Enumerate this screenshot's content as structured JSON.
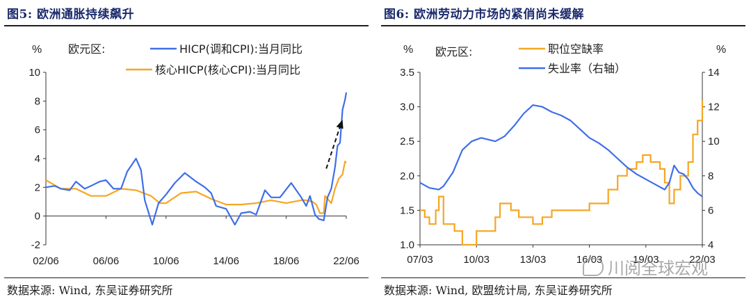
{
  "watermark": {
    "text": "川阅全球宏观",
    "icon": "wechat-bubble-icon"
  },
  "chart_data": [
    {
      "type": "line",
      "title": "图5: 欧洲通胀持续飙升",
      "source": "数据来源: Wind, 东吴证券研究所",
      "region_label": "欧元区:",
      "y_unit": "%",
      "ylim": [
        -2,
        10
      ],
      "y_ticks": [
        "-2",
        "0",
        "2",
        "4",
        "6",
        "8",
        "10"
      ],
      "x_ticks": [
        "02/06",
        "06/06",
        "10/06",
        "14/06",
        "18/06",
        "22/06"
      ],
      "xlim": [
        "2002-06",
        "2022-06"
      ],
      "legend_position": "top-right",
      "annotation": "dashed-arrow-up",
      "series": [
        {
          "name": "HICP(调和CPI):当月同比",
          "color": "#3f6ee8",
          "points": [
            [
              "2002-06",
              2.0
            ],
            [
              "2003-01",
              2.1
            ],
            [
              "2003-06",
              1.9
            ],
            [
              "2004-01",
              1.8
            ],
            [
              "2004-06",
              2.4
            ],
            [
              "2005-01",
              1.9
            ],
            [
              "2005-06",
              2.1
            ],
            [
              "2006-01",
              2.4
            ],
            [
              "2006-06",
              2.5
            ],
            [
              "2006-12",
              1.9
            ],
            [
              "2007-06",
              1.9
            ],
            [
              "2007-11",
              3.1
            ],
            [
              "2008-06",
              4.0
            ],
            [
              "2008-10",
              3.2
            ],
            [
              "2009-01",
              1.1
            ],
            [
              "2009-07",
              -0.6
            ],
            [
              "2009-12",
              0.9
            ],
            [
              "2010-06",
              1.5
            ],
            [
              "2011-01",
              2.3
            ],
            [
              "2011-09",
              3.0
            ],
            [
              "2012-06",
              2.4
            ],
            [
              "2013-01",
              2.0
            ],
            [
              "2013-06",
              1.6
            ],
            [
              "2013-10",
              0.7
            ],
            [
              "2014-06",
              0.5
            ],
            [
              "2015-01",
              -0.6
            ],
            [
              "2015-06",
              0.2
            ],
            [
              "2016-01",
              0.3
            ],
            [
              "2016-06",
              0.1
            ],
            [
              "2017-01",
              1.8
            ],
            [
              "2017-06",
              1.3
            ],
            [
              "2018-01",
              1.3
            ],
            [
              "2018-10",
              2.3
            ],
            [
              "2019-06",
              1.3
            ],
            [
              "2019-10",
              0.7
            ],
            [
              "2020-01",
              1.4
            ],
            [
              "2020-05",
              0.1
            ],
            [
              "2020-08",
              -0.2
            ],
            [
              "2020-12",
              -0.3
            ],
            [
              "2021-03",
              1.3
            ],
            [
              "2021-06",
              1.9
            ],
            [
              "2021-09",
              3.4
            ],
            [
              "2021-11",
              4.9
            ],
            [
              "2022-01",
              5.1
            ],
            [
              "2022-03",
              7.4
            ],
            [
              "2022-05",
              8.1
            ],
            [
              "2022-06",
              8.6
            ]
          ]
        },
        {
          "name": "核心HICP(核心CPI):当月同比",
          "color": "#f5a623",
          "points": [
            [
              "2002-06",
              2.5
            ],
            [
              "2003-06",
              1.9
            ],
            [
              "2004-06",
              1.9
            ],
            [
              "2005-06",
              1.4
            ],
            [
              "2006-06",
              1.4
            ],
            [
              "2007-06",
              1.9
            ],
            [
              "2008-06",
              1.8
            ],
            [
              "2009-06",
              1.4
            ],
            [
              "2010-01",
              0.9
            ],
            [
              "2010-06",
              0.9
            ],
            [
              "2011-06",
              1.6
            ],
            [
              "2012-06",
              1.7
            ],
            [
              "2013-06",
              1.2
            ],
            [
              "2014-06",
              0.8
            ],
            [
              "2015-06",
              0.8
            ],
            [
              "2016-06",
              0.9
            ],
            [
              "2017-06",
              1.1
            ],
            [
              "2018-06",
              0.9
            ],
            [
              "2019-06",
              1.1
            ],
            [
              "2019-10",
              1.1
            ],
            [
              "2020-03",
              1.0
            ],
            [
              "2020-06",
              0.8
            ],
            [
              "2020-09",
              0.2
            ],
            [
              "2020-12",
              0.2
            ],
            [
              "2021-01",
              1.4
            ],
            [
              "2021-06",
              0.9
            ],
            [
              "2021-09",
              1.9
            ],
            [
              "2021-12",
              2.6
            ],
            [
              "2022-03",
              2.9
            ],
            [
              "2022-05",
              3.8
            ],
            [
              "2022-06",
              3.7
            ]
          ]
        }
      ]
    },
    {
      "type": "line",
      "title": "图6: 欧洲劳动力市场的紧俏尚未缓解",
      "source": "数据来源: Wind, 欧盟统计局, 东吴证券研究所",
      "region_label": "欧元区:",
      "y_unit_left": "%",
      "y_unit_right": "%",
      "ylim_left": [
        1.0,
        3.5
      ],
      "ylim_right": [
        4,
        14
      ],
      "y_ticks_left": [
        "1.0",
        "1.5",
        "2.0",
        "2.5",
        "3.0",
        "3.5"
      ],
      "y_ticks_right": [
        "4",
        "6",
        "8",
        "10",
        "12",
        "14"
      ],
      "x_ticks": [
        "07/03",
        "10/03",
        "13/03",
        "16/03",
        "19/03",
        "22/03"
      ],
      "xlim": [
        "2007-03",
        "2022-03"
      ],
      "legend_position": "top",
      "series": [
        {
          "name": "职位空缺率",
          "axis": "left",
          "color": "#f5a623",
          "points": [
            [
              "2007-03",
              1.5
            ],
            [
              "2007-06",
              1.4
            ],
            [
              "2007-09",
              1.3
            ],
            [
              "2008-01",
              1.5
            ],
            [
              "2008-03",
              1.7
            ],
            [
              "2008-06",
              1.3
            ],
            [
              "2009-01",
              1.2
            ],
            [
              "2009-06",
              1.0
            ],
            [
              "2009-12",
              1.0
            ],
            [
              "2010-03",
              1.2
            ],
            [
              "2011-03",
              1.4
            ],
            [
              "2011-06",
              1.6
            ],
            [
              "2012-01",
              1.5
            ],
            [
              "2012-06",
              1.4
            ],
            [
              "2013-03",
              1.3
            ],
            [
              "2013-09",
              1.4
            ],
            [
              "2014-03",
              1.5
            ],
            [
              "2015-03",
              1.5
            ],
            [
              "2016-03",
              1.6
            ],
            [
              "2017-03",
              1.8
            ],
            [
              "2017-09",
              2.0
            ],
            [
              "2018-03",
              2.1
            ],
            [
              "2018-09",
              2.2
            ],
            [
              "2019-01",
              2.3
            ],
            [
              "2019-06",
              2.2
            ],
            [
              "2019-12",
              2.1
            ],
            [
              "2020-03",
              1.9
            ],
            [
              "2020-06",
              1.6
            ],
            [
              "2020-09",
              1.8
            ],
            [
              "2021-01",
              2.0
            ],
            [
              "2021-06",
              2.2
            ],
            [
              "2021-09",
              2.6
            ],
            [
              "2021-12",
              2.8
            ],
            [
              "2022-03",
              3.1
            ]
          ]
        },
        {
          "name": "失业率（右轴）",
          "axis": "right",
          "color": "#3f6ee8",
          "points": [
            [
              "2007-03",
              7.6
            ],
            [
              "2007-09",
              7.3
            ],
            [
              "2008-03",
              7.2
            ],
            [
              "2008-06",
              7.4
            ],
            [
              "2008-12",
              8.2
            ],
            [
              "2009-06",
              9.5
            ],
            [
              "2009-12",
              10.0
            ],
            [
              "2010-06",
              10.2
            ],
            [
              "2011-03",
              10.0
            ],
            [
              "2011-09",
              10.3
            ],
            [
              "2012-03",
              10.9
            ],
            [
              "2012-09",
              11.6
            ],
            [
              "2013-03",
              12.1
            ],
            [
              "2013-09",
              12.0
            ],
            [
              "2014-03",
              11.7
            ],
            [
              "2014-09",
              11.5
            ],
            [
              "2015-03",
              11.2
            ],
            [
              "2015-09",
              10.7
            ],
            [
              "2016-03",
              10.2
            ],
            [
              "2016-09",
              9.9
            ],
            [
              "2017-03",
              9.5
            ],
            [
              "2017-09",
              9.0
            ],
            [
              "2018-03",
              8.5
            ],
            [
              "2018-09",
              8.1
            ],
            [
              "2019-03",
              7.8
            ],
            [
              "2019-09",
              7.5
            ],
            [
              "2020-03",
              7.2
            ],
            [
              "2020-06",
              7.6
            ],
            [
              "2020-09",
              8.6
            ],
            [
              "2020-12",
              8.2
            ],
            [
              "2021-03",
              8.1
            ],
            [
              "2021-06",
              7.8
            ],
            [
              "2021-09",
              7.3
            ],
            [
              "2021-12",
              7.0
            ],
            [
              "2022-03",
              6.8
            ]
          ]
        }
      ]
    }
  ]
}
